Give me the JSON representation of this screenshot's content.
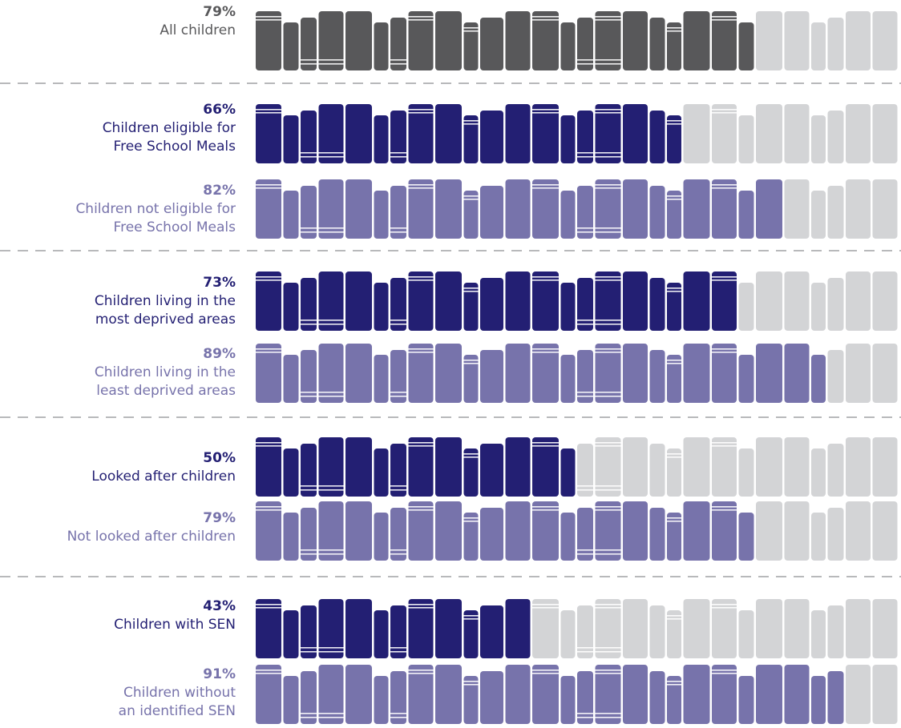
{
  "colors": {
    "all": "#58585a",
    "focus": "#231f73",
    "compare": "#7773ab",
    "empty": "#d3d4d6",
    "divider": "#b8b9bb"
  },
  "chart_data": {
    "type": "pictogram-bar",
    "unit": "percent",
    "rows": [
      {
        "name": "All children",
        "value": 79,
        "label": "79%",
        "style": "all"
      },
      {
        "name": "Children eligible for\nFree School Meals",
        "value": 66,
        "label": "66%",
        "style": "focus"
      },
      {
        "name": "Children not eligible for\nFree School Meals",
        "value": 82,
        "label": "82%",
        "style": "compare"
      },
      {
        "name": "Children living in the\nmost deprived areas",
        "value": 73,
        "label": "73%",
        "style": "focus"
      },
      {
        "name": "Children living in the\nleast deprived areas",
        "value": 89,
        "label": "89%",
        "style": "compare"
      },
      {
        "name": "Looked after children",
        "value": 50,
        "label": "50%",
        "style": "focus"
      },
      {
        "name": "Not looked after children",
        "value": 79,
        "label": "79%",
        "style": "compare"
      },
      {
        "name": "Children with SEN",
        "value": 43,
        "label": "43%",
        "style": "focus"
      },
      {
        "name": "Children without\nan identified SEN",
        "value": 91,
        "label": "91%",
        "style": "compare"
      }
    ]
  }
}
